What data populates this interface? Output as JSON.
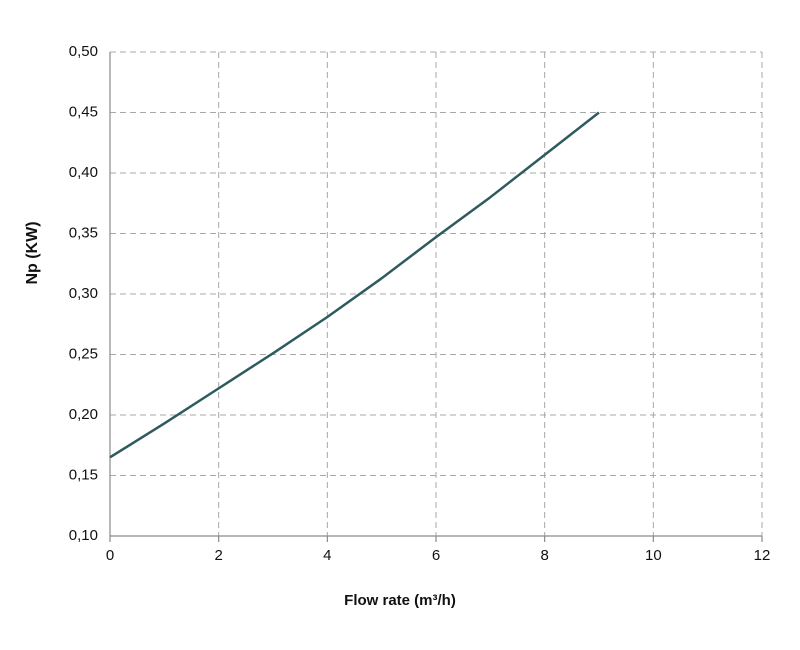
{
  "chart_data": {
    "type": "line",
    "x_label": "Flow rate (m³/h)",
    "y_label": "Np (KW)",
    "x": [
      0,
      1,
      2,
      3,
      4,
      5,
      6,
      7,
      8,
      9
    ],
    "values": [
      0.165,
      0.193,
      0.222,
      0.251,
      0.281,
      0.313,
      0.347,
      0.38,
      0.415,
      0.45
    ],
    "color": "#2f5a5e",
    "xlim": [
      0,
      12
    ],
    "xticks": [
      0,
      2,
      4,
      6,
      8,
      10,
      12
    ],
    "ylim": [
      0.1,
      0.5
    ],
    "yticks": [
      {
        "value": 0.1,
        "label": "0,10"
      },
      {
        "value": 0.15,
        "label": "0,15"
      },
      {
        "value": 0.2,
        "label": "0,20"
      },
      {
        "value": 0.25,
        "label": "0,25"
      },
      {
        "value": 0.3,
        "label": "0,30"
      },
      {
        "value": 0.35,
        "label": "0,35"
      },
      {
        "value": 0.4,
        "label": "0,40"
      },
      {
        "value": 0.45,
        "label": "0,45"
      },
      {
        "value": 0.5,
        "label": "0,50"
      }
    ],
    "grid": true
  }
}
